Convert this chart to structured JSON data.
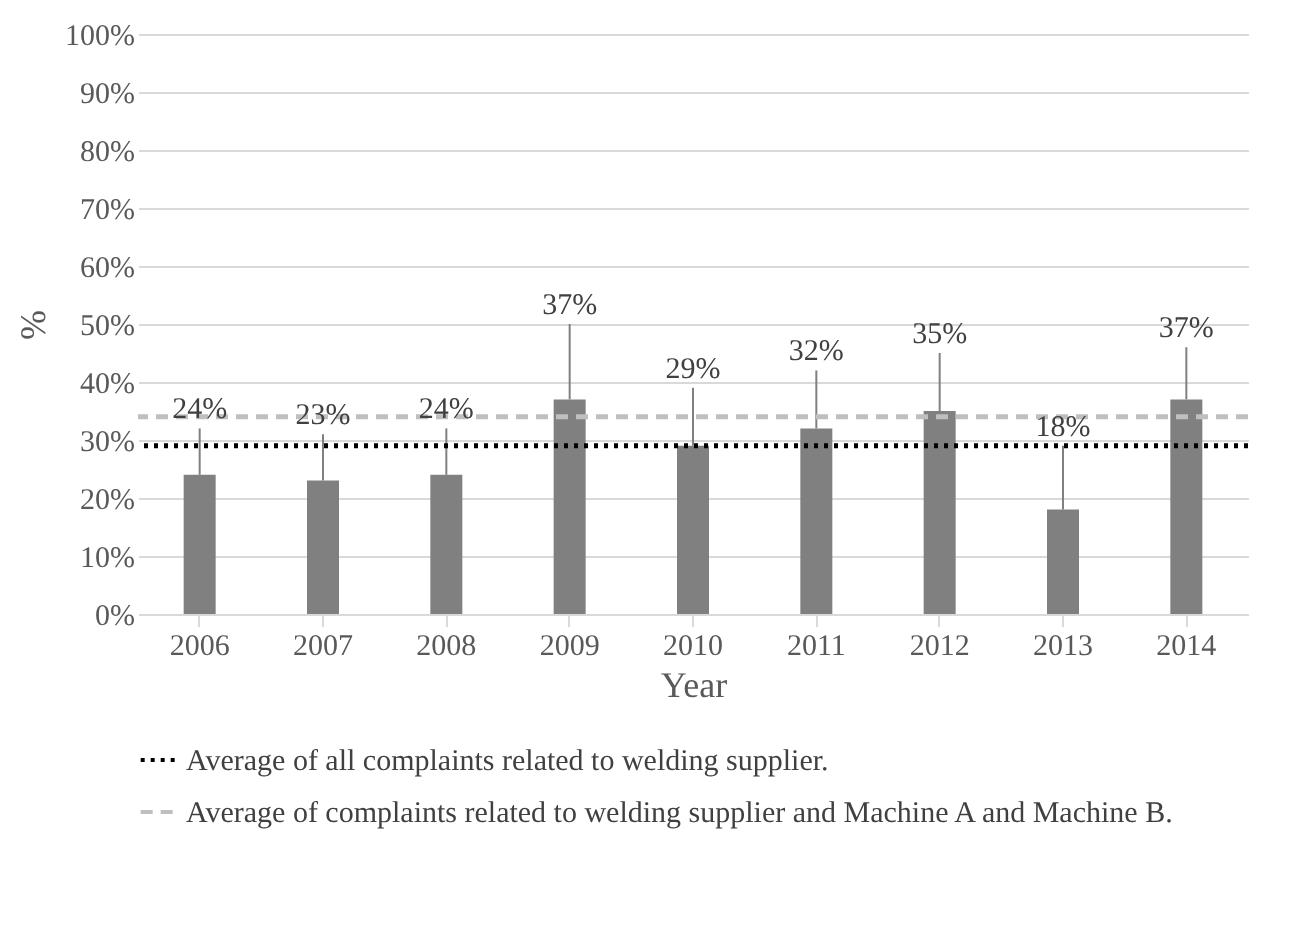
{
  "chart_data": {
    "type": "bar",
    "xlabel": "Year",
    "ylabel": "%",
    "categories": [
      "2006",
      "2007",
      "2008",
      "2009",
      "2010",
      "2011",
      "2012",
      "2013",
      "2014"
    ],
    "values": [
      24,
      23,
      24,
      37,
      29,
      32,
      35,
      18,
      37
    ],
    "value_labels": [
      "24%",
      "23%",
      "24%",
      "37%",
      "29%",
      "32%",
      "35%",
      "18%",
      "37%"
    ],
    "errors": [
      [
        24,
        32
      ],
      [
        23,
        31
      ],
      [
        24,
        32
      ],
      [
        37,
        50
      ],
      [
        29,
        39
      ],
      [
        32,
        42
      ],
      [
        35,
        45
      ],
      [
        18,
        29
      ],
      [
        37,
        46
      ]
    ],
    "color": "#808080",
    "ylim": [
      0,
      100
    ],
    "yticks": [
      {
        "value": 0,
        "label": "0%"
      },
      {
        "value": 10,
        "label": "10%"
      },
      {
        "value": 20,
        "label": "20%"
      },
      {
        "value": 30,
        "label": "30%"
      },
      {
        "value": 40,
        "label": "40%"
      },
      {
        "value": 50,
        "label": "50%"
      },
      {
        "value": 60,
        "label": "60%"
      },
      {
        "value": 70,
        "label": "70%"
      },
      {
        "value": 80,
        "label": "80%"
      },
      {
        "value": 90,
        "label": "90%"
      },
      {
        "value": 100,
        "label": "100%"
      }
    ],
    "ref_lines": [
      {
        "axis": "y",
        "value": 29,
        "label": "Average of all complaints related to welding supplier.",
        "color": "#000000",
        "line_style": "dotted"
      },
      {
        "axis": "y",
        "value": 34,
        "label": "Average of complaints related to welding supplier and Machine A and Machine B.",
        "color": "#bfbfbf",
        "line_style": "dashed"
      }
    ],
    "grid": "y",
    "legend": "bottom"
  }
}
